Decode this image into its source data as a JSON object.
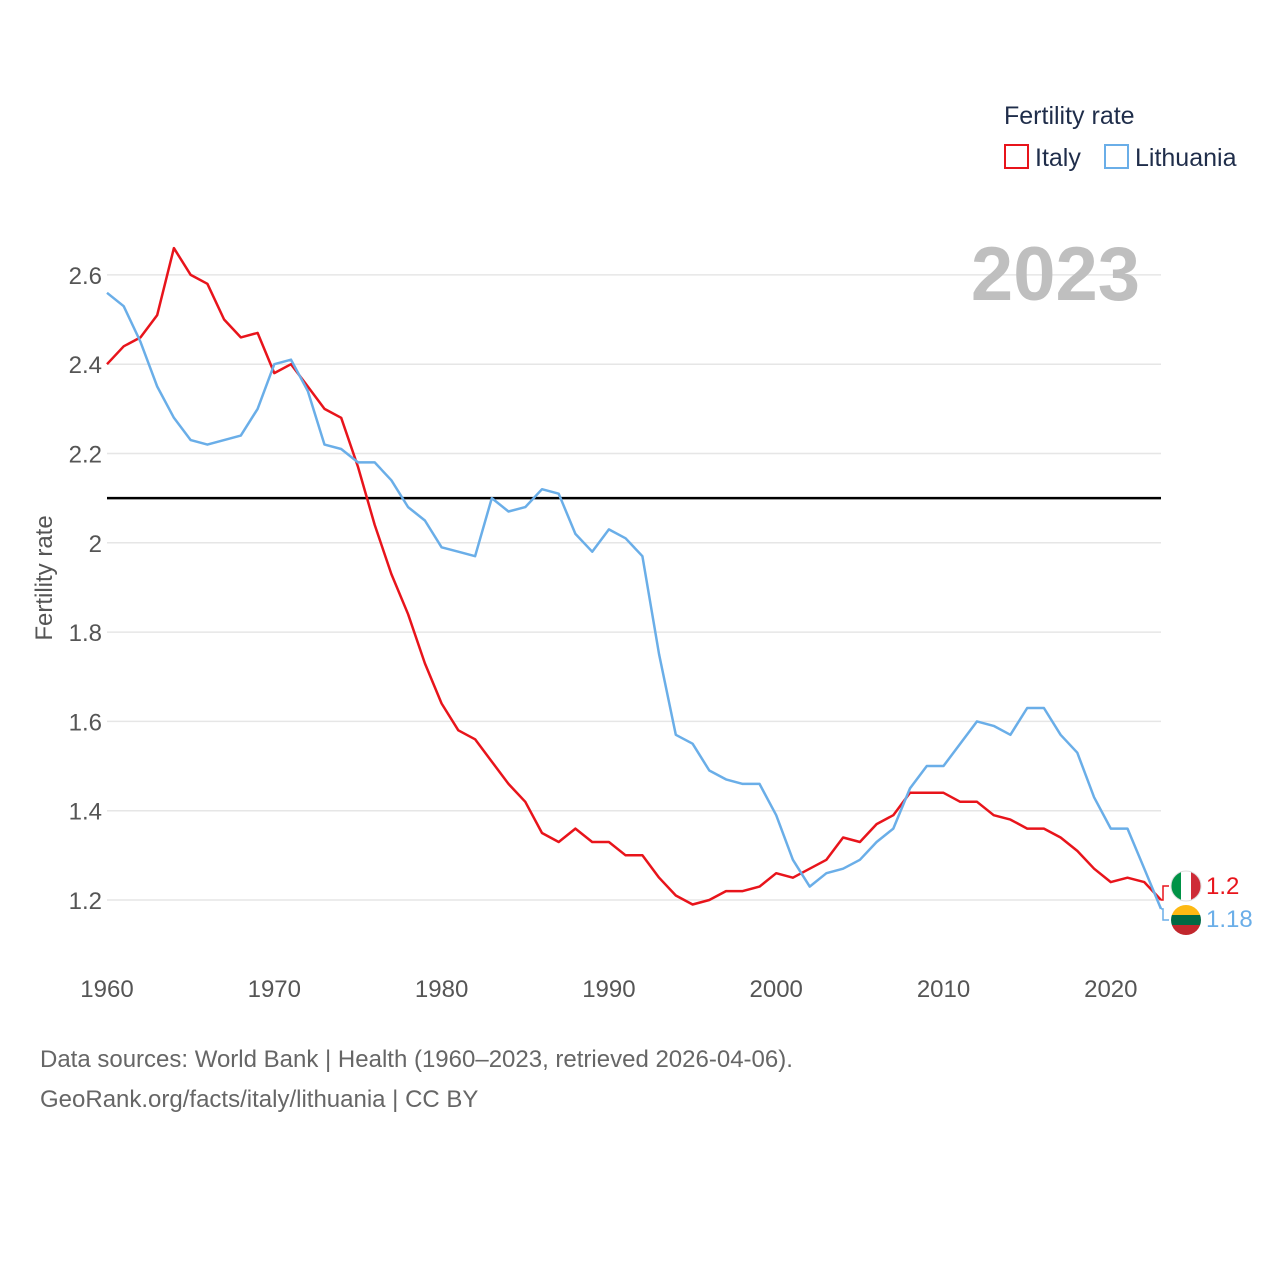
{
  "chart_data": {
    "type": "line",
    "title": "",
    "xlabel": "",
    "ylabel": "Fertility rate",
    "current_year_label": "2023",
    "legend_title": "Fertility rate",
    "legend_position": "top-right",
    "xlim": [
      1960,
      2023
    ],
    "ylim": [
      1.1,
      2.75
    ],
    "x_ticks": [
      1960,
      1970,
      1980,
      1990,
      2000,
      2010,
      2020
    ],
    "x_tick_labels": [
      "1960",
      "1970",
      "1980",
      "1990",
      "2000",
      "2010",
      "2020"
    ],
    "y_ticks": [
      1.2,
      1.4,
      1.6,
      1.8,
      2.0,
      2.2,
      2.4,
      2.6
    ],
    "y_tick_labels": [
      "1.2",
      "1.4",
      "1.6",
      "1.8",
      "2",
      "2.2",
      "2.4",
      "2.6"
    ],
    "grid": true,
    "reference_line": {
      "y": 2.1,
      "color": "#000000"
    },
    "x": [
      1960,
      1961,
      1962,
      1963,
      1964,
      1965,
      1966,
      1967,
      1968,
      1969,
      1970,
      1971,
      1972,
      1973,
      1974,
      1975,
      1976,
      1977,
      1978,
      1979,
      1980,
      1981,
      1982,
      1983,
      1984,
      1985,
      1986,
      1987,
      1988,
      1989,
      1990,
      1991,
      1992,
      1993,
      1994,
      1995,
      1996,
      1997,
      1998,
      1999,
      2000,
      2001,
      2002,
      2003,
      2004,
      2005,
      2006,
      2007,
      2008,
      2009,
      2010,
      2011,
      2012,
      2013,
      2014,
      2015,
      2016,
      2017,
      2018,
      2019,
      2020,
      2021,
      2022,
      2023
    ],
    "series": [
      {
        "name": "Italy",
        "color": "#e8141b",
        "end_label": "1.2",
        "values": [
          2.4,
          2.44,
          2.46,
          2.51,
          2.66,
          2.6,
          2.58,
          2.5,
          2.46,
          2.47,
          2.38,
          2.4,
          2.35,
          2.3,
          2.28,
          2.17,
          2.04,
          1.93,
          1.84,
          1.73,
          1.64,
          1.58,
          1.56,
          1.51,
          1.46,
          1.42,
          1.35,
          1.33,
          1.36,
          1.33,
          1.33,
          1.3,
          1.3,
          1.25,
          1.21,
          1.19,
          1.2,
          1.22,
          1.22,
          1.23,
          1.26,
          1.25,
          1.27,
          1.29,
          1.34,
          1.33,
          1.37,
          1.39,
          1.44,
          1.44,
          1.44,
          1.42,
          1.42,
          1.39,
          1.38,
          1.36,
          1.36,
          1.34,
          1.31,
          1.27,
          1.24,
          1.25,
          1.24,
          1.2
        ]
      },
      {
        "name": "Lithuania",
        "color": "#6aaee8",
        "end_label": "1.18",
        "values": [
          2.56,
          2.53,
          2.45,
          2.35,
          2.28,
          2.23,
          2.22,
          2.23,
          2.24,
          2.3,
          2.4,
          2.41,
          2.34,
          2.22,
          2.21,
          2.18,
          2.18,
          2.14,
          2.08,
          2.05,
          1.99,
          1.98,
          1.97,
          2.1,
          2.07,
          2.08,
          2.12,
          2.11,
          2.02,
          1.98,
          2.03,
          2.01,
          1.97,
          1.75,
          1.57,
          1.55,
          1.49,
          1.47,
          1.46,
          1.46,
          1.39,
          1.29,
          1.23,
          1.26,
          1.27,
          1.29,
          1.33,
          1.36,
          1.45,
          1.5,
          1.5,
          1.55,
          1.6,
          1.59,
          1.57,
          1.63,
          1.63,
          1.57,
          1.53,
          1.43,
          1.36,
          1.36,
          1.27,
          1.18
        ]
      }
    ]
  },
  "footer": {
    "source": "Data sources: World Bank | Health (1960–2023, retrieved 2026-04-06).",
    "credit": "GeoRank.org/facts/italy/lithuania | CC BY"
  }
}
